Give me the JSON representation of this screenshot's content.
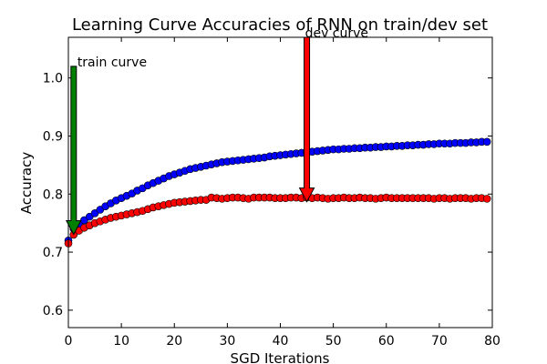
{
  "chart_data": {
    "type": "scatter",
    "title": "Learning Curve Accuracies of RNN on train/dev set",
    "xlabel": "SGD Iterations",
    "ylabel": "Accuracy",
    "xlim": [
      0,
      80
    ],
    "ylim": [
      0.57,
      1.07
    ],
    "xticks": [
      "0",
      "10",
      "20",
      "30",
      "40",
      "50",
      "60",
      "70",
      "80"
    ],
    "yticks": [
      "0.6",
      "0.7",
      "0.8",
      "0.9",
      "1.0"
    ],
    "grid": false,
    "series": [
      {
        "color": "#0000ff",
        "x": [
          0,
          1,
          2,
          3,
          4,
          5,
          6,
          7,
          8,
          9,
          10,
          11,
          12,
          13,
          14,
          15,
          16,
          17,
          18,
          19,
          20,
          21,
          22,
          23,
          24,
          25,
          26,
          27,
          28,
          29,
          30,
          31,
          32,
          33,
          34,
          35,
          36,
          37,
          38,
          39,
          40,
          41,
          42,
          43,
          44,
          45,
          46,
          47,
          48,
          49,
          50,
          51,
          52,
          53,
          54,
          55,
          56,
          57,
          58,
          59,
          60,
          61,
          62,
          63,
          64,
          65,
          66,
          67,
          68,
          69,
          70,
          71,
          72,
          73,
          74,
          75,
          76,
          77,
          78,
          79
        ],
        "y": [
          0.72,
          0.74,
          0.748,
          0.755,
          0.761,
          0.767,
          0.773,
          0.779,
          0.784,
          0.789,
          0.793,
          0.797,
          0.801,
          0.806,
          0.81,
          0.815,
          0.819,
          0.823,
          0.827,
          0.831,
          0.834,
          0.837,
          0.84,
          0.843,
          0.845,
          0.847,
          0.849,
          0.851,
          0.853,
          0.855,
          0.856,
          0.857,
          0.858,
          0.859,
          0.86,
          0.861,
          0.862,
          0.863,
          0.865,
          0.866,
          0.867,
          0.868,
          0.869,
          0.87,
          0.871,
          0.872,
          0.873,
          0.874,
          0.875,
          0.876,
          0.877,
          0.877,
          0.878,
          0.878,
          0.879,
          0.879,
          0.88,
          0.88,
          0.881,
          0.881,
          0.882,
          0.882,
          0.883,
          0.883,
          0.884,
          0.884,
          0.885,
          0.885,
          0.886,
          0.886,
          0.887,
          0.887,
          0.887,
          0.888,
          0.888,
          0.888,
          0.889,
          0.889,
          0.89,
          0.89
        ]
      },
      {
        "color": "#ff0000",
        "x": [
          0,
          1,
          2,
          3,
          4,
          5,
          6,
          7,
          8,
          9,
          10,
          11,
          12,
          13,
          14,
          15,
          16,
          17,
          18,
          19,
          20,
          21,
          22,
          23,
          24,
          25,
          26,
          27,
          28,
          29,
          30,
          31,
          32,
          33,
          34,
          35,
          36,
          37,
          38,
          39,
          40,
          41,
          42,
          43,
          44,
          45,
          46,
          47,
          48,
          49,
          50,
          51,
          52,
          53,
          54,
          55,
          56,
          57,
          58,
          59,
          60,
          61,
          62,
          63,
          64,
          65,
          66,
          67,
          68,
          69,
          70,
          71,
          72,
          73,
          74,
          75,
          76,
          77,
          78,
          79
        ],
        "y": [
          0.715,
          0.73,
          0.737,
          0.742,
          0.746,
          0.75,
          0.753,
          0.756,
          0.759,
          0.761,
          0.763,
          0.765,
          0.767,
          0.769,
          0.771,
          0.774,
          0.777,
          0.779,
          0.781,
          0.783,
          0.785,
          0.786,
          0.787,
          0.788,
          0.789,
          0.79,
          0.79,
          0.794,
          0.793,
          0.792,
          0.793,
          0.794,
          0.794,
          0.793,
          0.792,
          0.794,
          0.794,
          0.794,
          0.794,
          0.793,
          0.793,
          0.793,
          0.794,
          0.794,
          0.793,
          0.794,
          0.793,
          0.794,
          0.793,
          0.792,
          0.793,
          0.793,
          0.794,
          0.793,
          0.793,
          0.794,
          0.793,
          0.793,
          0.792,
          0.793,
          0.794,
          0.793,
          0.793,
          0.793,
          0.793,
          0.793,
          0.793,
          0.793,
          0.793,
          0.792,
          0.793,
          0.793,
          0.792,
          0.793,
          0.793,
          0.793,
          0.792,
          0.793,
          0.793,
          0.792
        ]
      }
    ],
    "annotations": [
      {
        "text": "train curve",
        "arrow_color": "#008000",
        "arrow_x": 1,
        "text_y": 1.02,
        "tip_y": 0.74
      },
      {
        "text": "dev curve",
        "arrow_color": "#ff0000",
        "arrow_x": 45,
        "text_y": 1.07,
        "tip_y": 0.79
      }
    ]
  }
}
